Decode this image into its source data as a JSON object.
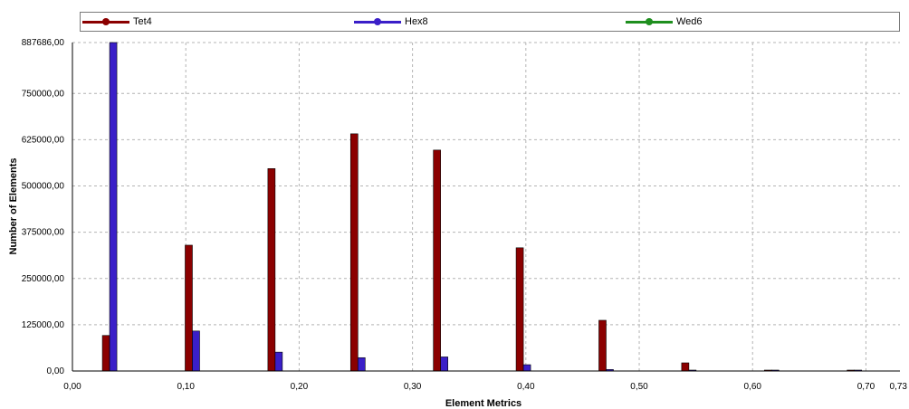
{
  "chart_data": {
    "type": "bar",
    "xlabel": "Element Metrics",
    "ylabel": "Number of Elements",
    "xlim": [
      0,
      0.73
    ],
    "ylim": [
      0,
      887686
    ],
    "grid": true,
    "legend_position": "top",
    "x_ticks": [
      "0,00",
      "0,10",
      "0,20",
      "0,30",
      "0,40",
      "0,50",
      "0,60",
      "0,70",
      "0,73"
    ],
    "x_tick_values": [
      0,
      0.1,
      0.2,
      0.3,
      0.4,
      0.5,
      0.6,
      0.7,
      0.73
    ],
    "y_ticks": [
      "0,00",
      "125000,00",
      "250000,00",
      "375000,00",
      "500000,00",
      "625000,00",
      "750000,00",
      "887686,00"
    ],
    "y_tick_values": [
      0,
      125000,
      250000,
      375000,
      500000,
      625000,
      750000,
      887686
    ],
    "x": [
      0.036,
      0.109,
      0.182,
      0.255,
      0.328,
      0.401,
      0.474,
      0.547,
      0.62,
      0.693
    ],
    "series": [
      {
        "name": "Tet4",
        "color": "#8b0000",
        "values": [
          96000,
          340000,
          547000,
          641000,
          597000,
          333000,
          137000,
          22000,
          2000,
          1500
        ]
      },
      {
        "name": "Hex8",
        "color": "#3a1fc8",
        "values": [
          887686,
          108000,
          51000,
          36000,
          38000,
          17000,
          4000,
          1500,
          500,
          500
        ]
      },
      {
        "name": "Wed6",
        "color": "#1f8f1f",
        "values": [
          0,
          0,
          0,
          0,
          0,
          0,
          0,
          0,
          0,
          0
        ]
      }
    ]
  }
}
